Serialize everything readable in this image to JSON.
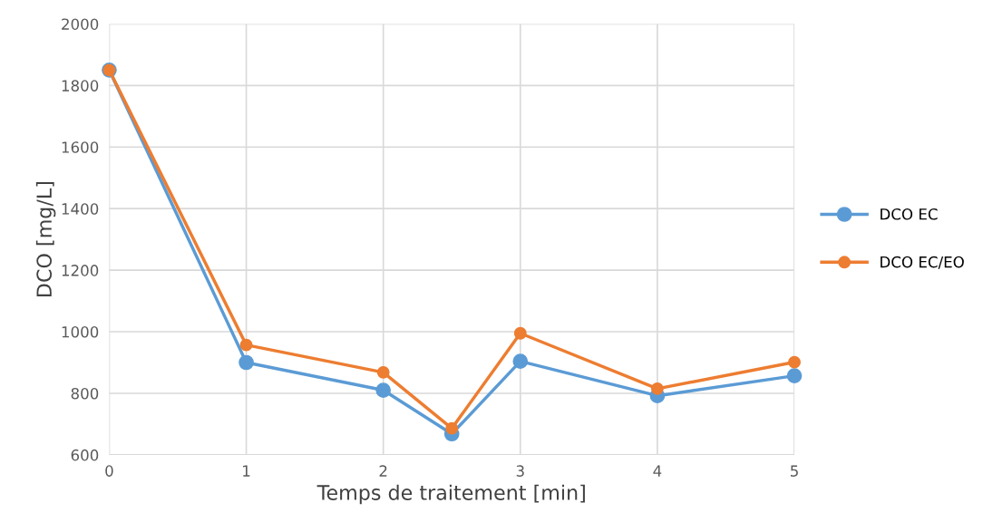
{
  "chart_data": {
    "type": "line",
    "xlabel": "Temps de traitement [min]",
    "ylabel": "DCO [mg/L]",
    "x": [
      0,
      1,
      2,
      2.5,
      3,
      4,
      5
    ],
    "series": [
      {
        "name": "DCO EC",
        "color": "#5b9bd5",
        "values": [
          1850,
          900,
          810,
          668,
          904,
          792,
          857
        ]
      },
      {
        "name": "DCO EC/EO",
        "color": "#ed7d31",
        "values": [
          1850,
          957,
          868,
          686,
          995,
          815,
          901
        ]
      }
    ],
    "xlim": [
      0,
      5
    ],
    "xticks": [
      0,
      1,
      2,
      3,
      4,
      5
    ],
    "ylim": [
      600,
      2000
    ],
    "yticks": [
      600,
      800,
      1000,
      1200,
      1400,
      1600,
      1800,
      2000
    ],
    "grid": true,
    "legend": "right",
    "marker": "circle",
    "line_style": "solid"
  }
}
